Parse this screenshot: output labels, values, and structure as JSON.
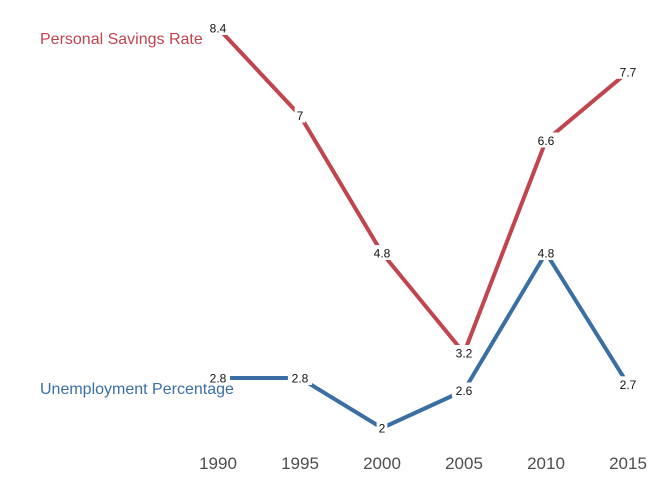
{
  "chart_data": {
    "type": "line",
    "x": [
      1990,
      1995,
      2000,
      2005,
      2010,
      2015
    ],
    "x_tick_labels": [
      "1990",
      "1995",
      "2000",
      "2005",
      "2010",
      "2015"
    ],
    "ylim": [
      1,
      9
    ],
    "grid": false,
    "legend": "none",
    "series": [
      {
        "name": "Personal Savings Rate",
        "values": [
          8.4,
          7,
          4.8,
          3.2,
          6.6,
          7.7
        ],
        "labels": [
          "8.4",
          "7",
          "4.8",
          "3.2",
          "6.6",
          "7.7"
        ],
        "color": "#c0454e"
      },
      {
        "name": "Unemployment Percentage",
        "values": [
          2.8,
          2.8,
          2,
          2.6,
          4.8,
          2.7
        ],
        "labels": [
          "2.8",
          "2.8",
          "2",
          "2.6",
          "4.8",
          "2.7"
        ],
        "color": "#3a6fa6"
      }
    ]
  }
}
